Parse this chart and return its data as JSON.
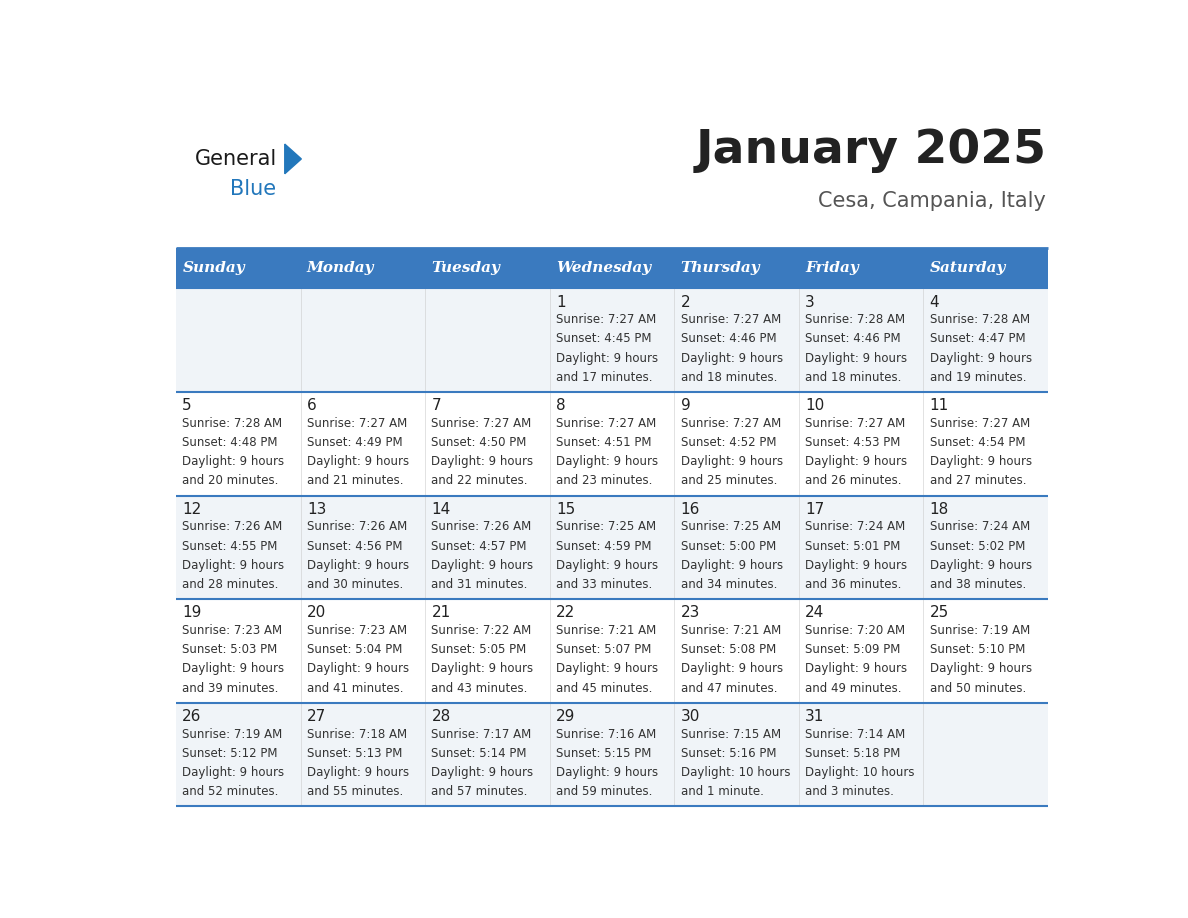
{
  "title": "January 2025",
  "subtitle": "Cesa, Campania, Italy",
  "days_of_week": [
    "Sunday",
    "Monday",
    "Tuesday",
    "Wednesday",
    "Thursday",
    "Friday",
    "Saturday"
  ],
  "header_bg": "#3a7abf",
  "header_text_color": "#ffffff",
  "row_bg_odd": "#f0f4f8",
  "row_bg_even": "#ffffff",
  "divider_color": "#3a7abf",
  "cell_text_color": "#333333",
  "day_num_color": "#222222",
  "title_color": "#222222",
  "subtitle_color": "#555555",
  "logo_general_color": "#1a1a1a",
  "logo_blue_color": "#2277bb",
  "calendar_data": [
    [
      {
        "day": "",
        "sunrise": "",
        "sunset": "",
        "daylight": ""
      },
      {
        "day": "",
        "sunrise": "",
        "sunset": "",
        "daylight": ""
      },
      {
        "day": "",
        "sunrise": "",
        "sunset": "",
        "daylight": ""
      },
      {
        "day": "1",
        "sunrise": "7:27 AM",
        "sunset": "4:45 PM",
        "daylight_hrs": "9",
        "daylight_min": "17 minutes."
      },
      {
        "day": "2",
        "sunrise": "7:27 AM",
        "sunset": "4:46 PM",
        "daylight_hrs": "9",
        "daylight_min": "18 minutes."
      },
      {
        "day": "3",
        "sunrise": "7:28 AM",
        "sunset": "4:46 PM",
        "daylight_hrs": "9",
        "daylight_min": "18 minutes."
      },
      {
        "day": "4",
        "sunrise": "7:28 AM",
        "sunset": "4:47 PM",
        "daylight_hrs": "9",
        "daylight_min": "19 minutes."
      }
    ],
    [
      {
        "day": "5",
        "sunrise": "7:28 AM",
        "sunset": "4:48 PM",
        "daylight_hrs": "9",
        "daylight_min": "20 minutes."
      },
      {
        "day": "6",
        "sunrise": "7:27 AM",
        "sunset": "4:49 PM",
        "daylight_hrs": "9",
        "daylight_min": "21 minutes."
      },
      {
        "day": "7",
        "sunrise": "7:27 AM",
        "sunset": "4:50 PM",
        "daylight_hrs": "9",
        "daylight_min": "22 minutes."
      },
      {
        "day": "8",
        "sunrise": "7:27 AM",
        "sunset": "4:51 PM",
        "daylight_hrs": "9",
        "daylight_min": "23 minutes."
      },
      {
        "day": "9",
        "sunrise": "7:27 AM",
        "sunset": "4:52 PM",
        "daylight_hrs": "9",
        "daylight_min": "25 minutes."
      },
      {
        "day": "10",
        "sunrise": "7:27 AM",
        "sunset": "4:53 PM",
        "daylight_hrs": "9",
        "daylight_min": "26 minutes."
      },
      {
        "day": "11",
        "sunrise": "7:27 AM",
        "sunset": "4:54 PM",
        "daylight_hrs": "9",
        "daylight_min": "27 minutes."
      }
    ],
    [
      {
        "day": "12",
        "sunrise": "7:26 AM",
        "sunset": "4:55 PM",
        "daylight_hrs": "9",
        "daylight_min": "28 minutes."
      },
      {
        "day": "13",
        "sunrise": "7:26 AM",
        "sunset": "4:56 PM",
        "daylight_hrs": "9",
        "daylight_min": "30 minutes."
      },
      {
        "day": "14",
        "sunrise": "7:26 AM",
        "sunset": "4:57 PM",
        "daylight_hrs": "9",
        "daylight_min": "31 minutes."
      },
      {
        "day": "15",
        "sunrise": "7:25 AM",
        "sunset": "4:59 PM",
        "daylight_hrs": "9",
        "daylight_min": "33 minutes."
      },
      {
        "day": "16",
        "sunrise": "7:25 AM",
        "sunset": "5:00 PM",
        "daylight_hrs": "9",
        "daylight_min": "34 minutes."
      },
      {
        "day": "17",
        "sunrise": "7:24 AM",
        "sunset": "5:01 PM",
        "daylight_hrs": "9",
        "daylight_min": "36 minutes."
      },
      {
        "day": "18",
        "sunrise": "7:24 AM",
        "sunset": "5:02 PM",
        "daylight_hrs": "9",
        "daylight_min": "38 minutes."
      }
    ],
    [
      {
        "day": "19",
        "sunrise": "7:23 AM",
        "sunset": "5:03 PM",
        "daylight_hrs": "9",
        "daylight_min": "39 minutes."
      },
      {
        "day": "20",
        "sunrise": "7:23 AM",
        "sunset": "5:04 PM",
        "daylight_hrs": "9",
        "daylight_min": "41 minutes."
      },
      {
        "day": "21",
        "sunrise": "7:22 AM",
        "sunset": "5:05 PM",
        "daylight_hrs": "9",
        "daylight_min": "43 minutes."
      },
      {
        "day": "22",
        "sunrise": "7:21 AM",
        "sunset": "5:07 PM",
        "daylight_hrs": "9",
        "daylight_min": "45 minutes."
      },
      {
        "day": "23",
        "sunrise": "7:21 AM",
        "sunset": "5:08 PM",
        "daylight_hrs": "9",
        "daylight_min": "47 minutes."
      },
      {
        "day": "24",
        "sunrise": "7:20 AM",
        "sunset": "5:09 PM",
        "daylight_hrs": "9",
        "daylight_min": "49 minutes."
      },
      {
        "day": "25",
        "sunrise": "7:19 AM",
        "sunset": "5:10 PM",
        "daylight_hrs": "9",
        "daylight_min": "50 minutes."
      }
    ],
    [
      {
        "day": "26",
        "sunrise": "7:19 AM",
        "sunset": "5:12 PM",
        "daylight_hrs": "9",
        "daylight_min": "52 minutes."
      },
      {
        "day": "27",
        "sunrise": "7:18 AM",
        "sunset": "5:13 PM",
        "daylight_hrs": "9",
        "daylight_min": "55 minutes."
      },
      {
        "day": "28",
        "sunrise": "7:17 AM",
        "sunset": "5:14 PM",
        "daylight_hrs": "9",
        "daylight_min": "57 minutes."
      },
      {
        "day": "29",
        "sunrise": "7:16 AM",
        "sunset": "5:15 PM",
        "daylight_hrs": "9",
        "daylight_min": "59 minutes."
      },
      {
        "day": "30",
        "sunrise": "7:15 AM",
        "sunset": "5:16 PM",
        "daylight_hrs": "10",
        "daylight_min": "1 minute."
      },
      {
        "day": "31",
        "sunrise": "7:14 AM",
        "sunset": "5:18 PM",
        "daylight_hrs": "10",
        "daylight_min": "3 minutes."
      },
      {
        "day": "",
        "sunrise": "",
        "sunset": "",
        "daylight_hrs": "",
        "daylight_min": ""
      }
    ]
  ]
}
